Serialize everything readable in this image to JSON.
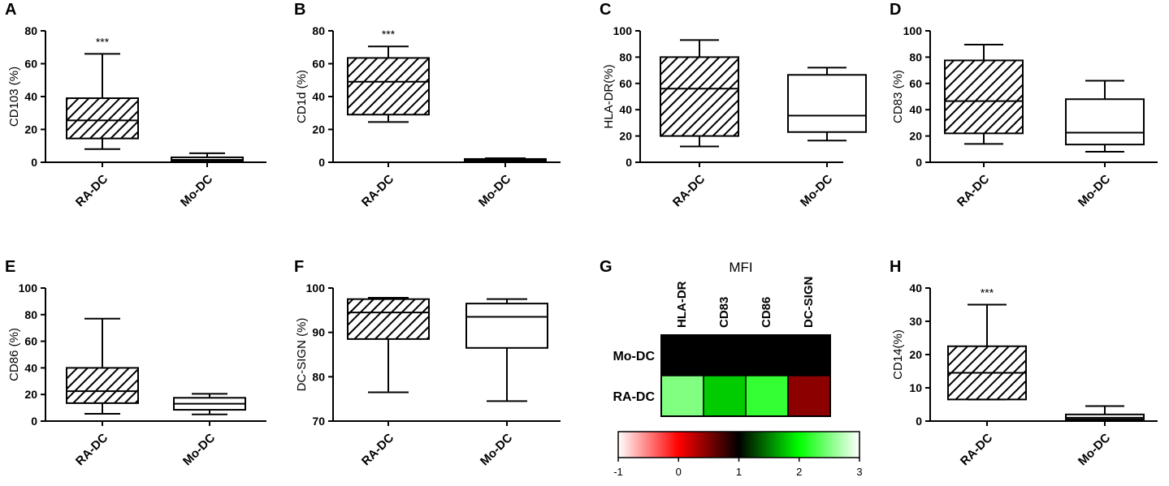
{
  "chart_data": [
    {
      "type": "box",
      "panel": "A",
      "ylabel": "CD103 (%)",
      "ylim": [
        0,
        80
      ],
      "yticks": [
        0,
        20,
        40,
        60,
        80
      ],
      "categories": [
        "RA-DC",
        "Mo-DC"
      ],
      "boxes": [
        {
          "name": "RA-DC",
          "min": 8,
          "q1": 14.5,
          "median": 25.5,
          "q3": 39,
          "max": 66,
          "fill": "hatched",
          "annotation": "***"
        },
        {
          "name": "Mo-DC",
          "min": 0,
          "q1": 0.5,
          "median": 1.5,
          "q3": 3,
          "max": 5.5,
          "fill": "white"
        }
      ]
    },
    {
      "type": "box",
      "panel": "B",
      "ylabel": "CD1d (%)",
      "ylim": [
        0,
        80
      ],
      "yticks": [
        0,
        20,
        40,
        60,
        80
      ],
      "categories": [
        "RA-DC",
        "Mo-DC"
      ],
      "boxes": [
        {
          "name": "RA-DC",
          "min": 24.5,
          "q1": 29,
          "median": 49,
          "q3": 63.5,
          "max": 70.5,
          "fill": "hatched",
          "annotation": "***"
        },
        {
          "name": "Mo-DC",
          "min": 0.5,
          "q1": 1,
          "median": 1.5,
          "q3": 2,
          "max": 2.5,
          "fill": "white"
        }
      ]
    },
    {
      "type": "box",
      "panel": "C",
      "ylabel": "HLA-DR(%)",
      "ylim": [
        0,
        100
      ],
      "yticks": [
        0,
        20,
        40,
        60,
        80,
        100
      ],
      "categories": [
        "RA-DC",
        "Mo-DC"
      ],
      "boxes": [
        {
          "name": "RA-DC",
          "min": 12,
          "q1": 20,
          "median": 56,
          "q3": 80,
          "max": 93,
          "fill": "hatched"
        },
        {
          "name": "Mo-DC",
          "min": 16.5,
          "q1": 23,
          "median": 35.5,
          "q3": 66.5,
          "max": 72,
          "fill": "white"
        }
      ]
    },
    {
      "type": "box",
      "panel": "D",
      "ylabel": "CD83 (%)",
      "ylim": [
        0,
        100
      ],
      "yticks": [
        0,
        20,
        40,
        60,
        80,
        100
      ],
      "categories": [
        "RA-DC",
        "Mo-DC"
      ],
      "boxes": [
        {
          "name": "RA-DC",
          "min": 14,
          "q1": 22,
          "median": 46.5,
          "q3": 77.5,
          "max": 89.5,
          "fill": "hatched"
        },
        {
          "name": "Mo-DC",
          "min": 8,
          "q1": 13.5,
          "median": 22.5,
          "q3": 48,
          "max": 62,
          "fill": "white"
        }
      ]
    },
    {
      "type": "box",
      "panel": "E",
      "ylabel": "CD86 (%)",
      "ylim": [
        0,
        100
      ],
      "yticks": [
        0,
        20,
        40,
        60,
        80,
        100
      ],
      "categories": [
        "RA-DC",
        "Mo-DC"
      ],
      "boxes": [
        {
          "name": "RA-DC",
          "min": 5.5,
          "q1": 13.5,
          "median": 22.5,
          "q3": 40,
          "max": 77,
          "fill": "hatched"
        },
        {
          "name": "Mo-DC",
          "min": 5,
          "q1": 8.5,
          "median": 13,
          "q3": 17.5,
          "max": 20.5,
          "fill": "white"
        }
      ]
    },
    {
      "type": "box",
      "panel": "F",
      "ylabel": "DC-SIGN (%)",
      "ylim": [
        70,
        100
      ],
      "yticks": [
        70,
        80,
        90,
        100
      ],
      "categories": [
        "RA-DC",
        "Mo-DC"
      ],
      "boxes": [
        {
          "name": "RA-DC",
          "min": 76.5,
          "q1": 88.5,
          "median": 94.5,
          "q3": 97.5,
          "max": 97.8,
          "fill": "hatched"
        },
        {
          "name": "Mo-DC",
          "min": 74.5,
          "q1": 86.5,
          "median": 93.5,
          "q3": 96.5,
          "max": 97.5,
          "fill": "white"
        }
      ]
    },
    {
      "type": "heatmap",
      "panel": "G",
      "title": "MFI",
      "columns": [
        "HLA-DR",
        "CD83",
        "CD86",
        "DC-SIGN"
      ],
      "rows": [
        "Mo-DC",
        "RA-DC"
      ],
      "values": [
        [
          1,
          1,
          1,
          1
        ],
        [
          2.5,
          1.8,
          2.2,
          0.45
        ]
      ],
      "colorbar": {
        "min": -1,
        "max": 3,
        "ticks": [
          -1,
          0,
          1,
          2,
          3
        ]
      }
    },
    {
      "type": "box",
      "panel": "H",
      "ylabel": "CD14(%)",
      "ylim": [
        0,
        40
      ],
      "yticks": [
        0,
        10,
        20,
        30,
        40
      ],
      "categories": [
        "RA-DC",
        "Mo-DC"
      ],
      "boxes": [
        {
          "name": "RA-DC",
          "min": 6.5,
          "q1": 6.5,
          "median": 14.5,
          "q3": 22.5,
          "max": 35,
          "fill": "hatched",
          "annotation": "***"
        },
        {
          "name": "Mo-DC",
          "min": 0,
          "q1": 0.5,
          "median": 1,
          "q3": 2,
          "max": 4.5,
          "fill": "white"
        }
      ]
    }
  ]
}
